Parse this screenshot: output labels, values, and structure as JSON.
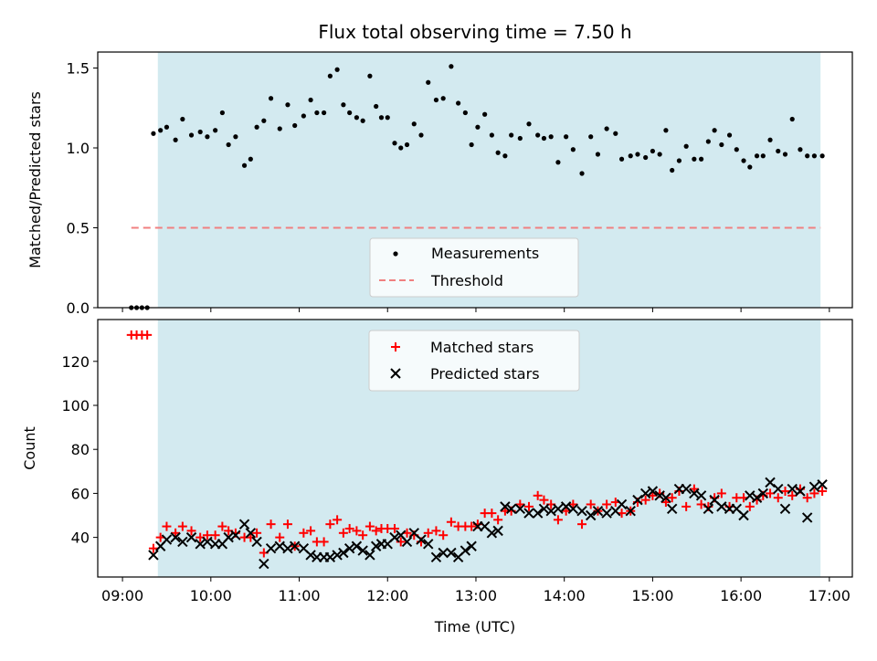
{
  "title": "Flux total observing time = 7.50 h",
  "colors": {
    "observing_band": "#d3eaf0",
    "measurement": "#000000",
    "threshold": "#f08080",
    "matched": "#ff0000",
    "predicted": "#000000"
  },
  "chart_data": [
    {
      "type": "scatter",
      "ylabel": "Matched/Predicted stars",
      "xlim": [
        8.72,
        17.26
      ],
      "ylim": [
        0,
        1.6
      ],
      "yticks": [
        0.0,
        0.5,
        1.0,
        1.5
      ],
      "ytick_labels": [
        "0.0",
        "0.5",
        "1.0",
        "1.5"
      ],
      "observing_window": [
        9.4,
        16.9
      ],
      "legend": {
        "placement": "lower-center",
        "entries": [
          "Measurements",
          "Threshold"
        ]
      },
      "threshold": {
        "name": "Threshold",
        "value": 0.5,
        "x_range": [
          9.1,
          16.9
        ]
      },
      "series": [
        {
          "name": "Measurements",
          "x": [
            9.1,
            9.16,
            9.22,
            9.28,
            9.35,
            9.43,
            9.5,
            9.6,
            9.68,
            9.78,
            9.88,
            9.96,
            10.05,
            10.13,
            10.2,
            10.28,
            10.38,
            10.45,
            10.52,
            10.6,
            10.68,
            10.78,
            10.87,
            10.95,
            11.05,
            11.13,
            11.2,
            11.28,
            11.35,
            11.43,
            11.5,
            11.57,
            11.65,
            11.72,
            11.8,
            11.87,
            11.93,
            12.0,
            12.08,
            12.15,
            12.22,
            12.3,
            12.38,
            12.46,
            12.55,
            12.63,
            12.72,
            12.8,
            12.88,
            12.95,
            13.02,
            13.1,
            13.18,
            13.25,
            13.33,
            13.4,
            13.5,
            13.6,
            13.7,
            13.77,
            13.85,
            13.93,
            14.02,
            14.1,
            14.2,
            14.3,
            14.38,
            14.48,
            14.58,
            14.65,
            14.75,
            14.83,
            14.92,
            15.0,
            15.08,
            15.15,
            15.22,
            15.3,
            15.38,
            15.47,
            15.55,
            15.63,
            15.7,
            15.78,
            15.87,
            15.95,
            16.03,
            16.1,
            16.18,
            16.25,
            16.33,
            16.42,
            16.5,
            16.58,
            16.67,
            16.75,
            16.83,
            16.92
          ],
          "y": [
            0.0,
            0.0,
            0.0,
            0.0,
            1.09,
            1.11,
            1.13,
            1.05,
            1.18,
            1.08,
            1.1,
            1.07,
            1.11,
            1.22,
            1.02,
            1.07,
            0.89,
            0.93,
            1.13,
            1.17,
            1.31,
            1.12,
            1.27,
            1.14,
            1.2,
            1.3,
            1.22,
            1.22,
            1.45,
            1.49,
            1.27,
            1.22,
            1.19,
            1.17,
            1.45,
            1.26,
            1.19,
            1.19,
            1.03,
            1.0,
            1.02,
            1.15,
            1.08,
            1.41,
            1.3,
            1.31,
            1.51,
            1.28,
            1.22,
            1.02,
            1.13,
            1.21,
            1.08,
            0.97,
            0.95,
            1.08,
            1.06,
            1.15,
            1.08,
            1.06,
            1.07,
            0.91,
            1.07,
            0.99,
            0.84,
            1.07,
            0.96,
            1.12,
            1.09,
            0.93,
            0.95,
            0.96,
            0.94,
            0.98,
            0.96,
            1.11,
            0.86,
            0.92,
            1.01,
            0.93,
            0.93,
            1.04,
            1.11,
            1.02,
            1.08,
            0.99,
            0.92,
            0.88,
            0.95,
            0.95,
            1.05,
            0.98,
            0.96,
            1.18,
            0.99,
            0.95,
            0.95,
            0.95
          ]
        }
      ]
    },
    {
      "type": "scatter",
      "ylabel": "Count",
      "xlabel": "Time (UTC)",
      "xlim": [
        8.72,
        17.26
      ],
      "ylim": [
        22,
        139
      ],
      "yticks": [
        40,
        60,
        80,
        100,
        120
      ],
      "ytick_labels": [
        "40",
        "60",
        "80",
        "100",
        "120"
      ],
      "xticks": [
        9,
        10,
        11,
        12,
        13,
        14,
        15,
        16,
        17
      ],
      "xtick_labels": [
        "09:00",
        "10:00",
        "11:00",
        "12:00",
        "13:00",
        "14:00",
        "15:00",
        "16:00",
        "17:00"
      ],
      "observing_window": [
        9.4,
        16.9
      ],
      "legend": {
        "placement": "upper-center",
        "entries": [
          "Matched stars",
          "Predicted stars"
        ]
      },
      "series": [
        {
          "name": "Matched stars",
          "x": [
            9.1,
            9.16,
            9.22,
            9.28,
            9.35,
            9.43,
            9.5,
            9.6,
            9.68,
            9.78,
            9.88,
            9.96,
            10.05,
            10.13,
            10.2,
            10.28,
            10.38,
            10.45,
            10.52,
            10.6,
            10.68,
            10.78,
            10.87,
            10.95,
            11.05,
            11.13,
            11.2,
            11.28,
            11.35,
            11.43,
            11.5,
            11.57,
            11.65,
            11.72,
            11.8,
            11.87,
            11.93,
            12.0,
            12.08,
            12.15,
            12.22,
            12.3,
            12.38,
            12.46,
            12.55,
            12.63,
            12.72,
            12.8,
            12.88,
            12.95,
            13.02,
            13.1,
            13.18,
            13.25,
            13.33,
            13.4,
            13.5,
            13.6,
            13.7,
            13.77,
            13.85,
            13.93,
            14.02,
            14.1,
            14.2,
            14.3,
            14.38,
            14.48,
            14.58,
            14.65,
            14.75,
            14.83,
            14.92,
            15.0,
            15.08,
            15.15,
            15.22,
            15.3,
            15.38,
            15.47,
            15.55,
            15.63,
            15.7,
            15.78,
            15.87,
            15.95,
            16.03,
            16.1,
            16.18,
            16.25,
            16.33,
            16.42,
            16.5,
            16.58,
            16.67,
            16.75,
            16.83,
            16.92
          ],
          "y": [
            132,
            132,
            132,
            132,
            35,
            40,
            45,
            42,
            45,
            43,
            40,
            41,
            41,
            45,
            43,
            42,
            40,
            40,
            42,
            33,
            46,
            40,
            46,
            36,
            42,
            43,
            38,
            38,
            46,
            48,
            42,
            44,
            43,
            41,
            45,
            43,
            44,
            44,
            44,
            38,
            42,
            41,
            38,
            42,
            43,
            41,
            47,
            45,
            45,
            45,
            46,
            51,
            51,
            48,
            52,
            52,
            55,
            54,
            59,
            57,
            55,
            48,
            52,
            55,
            46,
            55,
            52,
            55,
            56,
            51,
            52,
            56,
            57,
            59,
            60,
            56,
            58,
            61,
            54,
            62,
            55,
            54,
            58,
            60,
            54,
            58,
            58,
            54,
            57,
            59,
            60,
            58,
            61,
            59,
            62,
            58,
            60,
            61
          ]
        },
        {
          "name": "Predicted stars",
          "x": [
            9.35,
            9.43,
            9.5,
            9.6,
            9.68,
            9.78,
            9.88,
            9.96,
            10.05,
            10.13,
            10.2,
            10.28,
            10.38,
            10.45,
            10.52,
            10.6,
            10.68,
            10.78,
            10.87,
            10.95,
            11.05,
            11.13,
            11.2,
            11.28,
            11.35,
            11.43,
            11.5,
            11.57,
            11.65,
            11.72,
            11.8,
            11.87,
            11.93,
            12.0,
            12.08,
            12.15,
            12.22,
            12.3,
            12.38,
            12.46,
            12.55,
            12.63,
            12.72,
            12.8,
            12.88,
            12.95,
            13.02,
            13.1,
            13.18,
            13.25,
            13.33,
            13.4,
            13.5,
            13.6,
            13.7,
            13.77,
            13.85,
            13.93,
            14.02,
            14.1,
            14.2,
            14.3,
            14.38,
            14.48,
            14.58,
            14.65,
            14.75,
            14.83,
            14.92,
            15.0,
            15.08,
            15.15,
            15.22,
            15.3,
            15.38,
            15.47,
            15.55,
            15.63,
            15.7,
            15.78,
            15.87,
            15.95,
            16.03,
            16.1,
            16.18,
            16.25,
            16.33,
            16.42,
            16.5,
            16.58,
            16.67,
            16.75,
            16.83,
            16.92
          ],
          "y": [
            32,
            36,
            39,
            40,
            38,
            40,
            37,
            38,
            37,
            37,
            40,
            41,
            46,
            42,
            38,
            28,
            35,
            36,
            35,
            36,
            35,
            32,
            31,
            31,
            31,
            32,
            33,
            35,
            36,
            34,
            32,
            36,
            37,
            37,
            40,
            41,
            38,
            42,
            39,
            37,
            31,
            33,
            33,
            31,
            34,
            36,
            45,
            45,
            42,
            43,
            54,
            53,
            53,
            51,
            51,
            53,
            52,
            53,
            54,
            53,
            52,
            50,
            52,
            51,
            52,
            55,
            52,
            57,
            60,
            61,
            59,
            58,
            53,
            62,
            62,
            60,
            59,
            53,
            57,
            54,
            53,
            53,
            50,
            59,
            58,
            60,
            65,
            62,
            53,
            62,
            61,
            49,
            63,
            64
          ]
        }
      ]
    }
  ]
}
